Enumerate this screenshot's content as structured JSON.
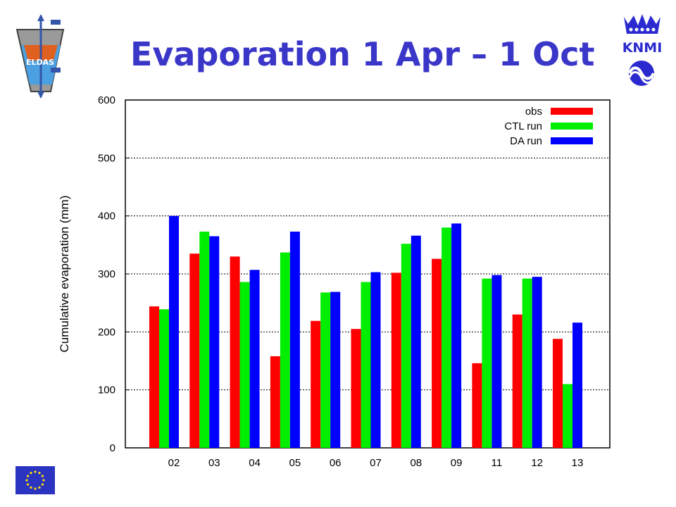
{
  "slide": {
    "title": "Evaporation 1 Apr – 1 Oct",
    "title_color": "#3a36c8"
  },
  "logos": {
    "left": {
      "label": "ELDAS",
      "icon": "eldas-logo"
    },
    "right_top": {
      "label": "KNMI",
      "icon": "knmi-crown-logo",
      "color": "#2a2ad0"
    },
    "right_bottom": {
      "icon": "ecmwf-logo",
      "color": "#2a2ad0"
    },
    "bottom_left": {
      "icon": "eu-flag",
      "color": "#2a34c0"
    }
  },
  "chart_data": {
    "type": "bar",
    "title": "",
    "xlabel": "",
    "ylabel": "Cumulative evaporation (mm)",
    "ylim": [
      0,
      600
    ],
    "yticks": [
      0,
      100,
      200,
      300,
      400,
      500,
      600
    ],
    "grid": true,
    "legend_position": "top-right",
    "categories": [
      "02",
      "03",
      "04",
      "05",
      "06",
      "07",
      "08",
      "09",
      "11",
      "12",
      "13"
    ],
    "series": [
      {
        "name": "obs",
        "color": "#ff0000",
        "values": [
          244,
          335,
          330,
          158,
          219,
          205,
          302,
          326,
          146,
          230,
          188
        ]
      },
      {
        "name": "CTL run",
        "color": "#00ee00",
        "values": [
          239,
          373,
          286,
          337,
          268,
          286,
          352,
          380,
          292,
          292,
          110
        ]
      },
      {
        "name": "DA run",
        "color": "#0000ff",
        "values": [
          400,
          365,
          307,
          373,
          269,
          303,
          366,
          387,
          298,
          295,
          216
        ]
      }
    ]
  }
}
